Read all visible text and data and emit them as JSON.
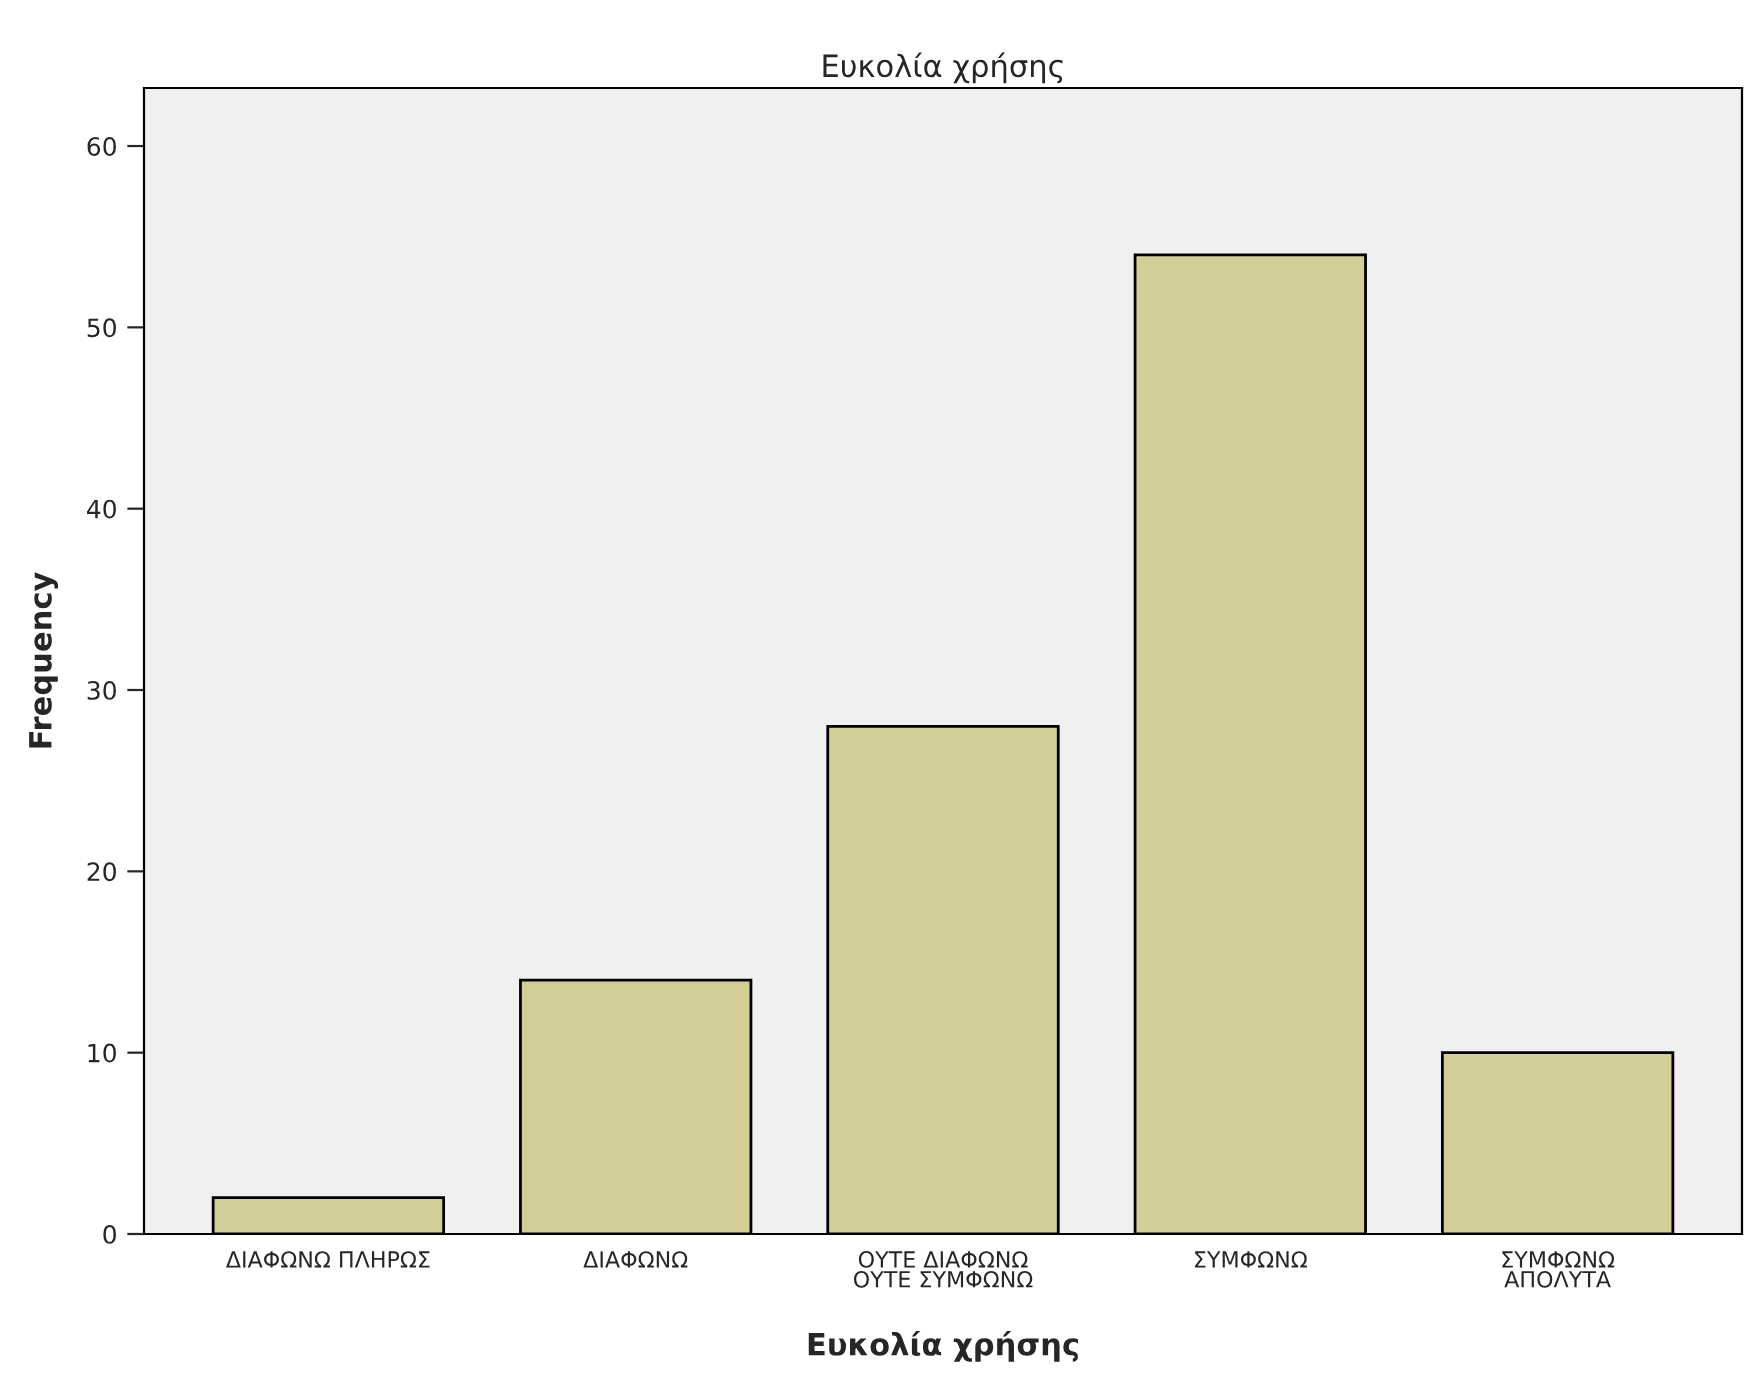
{
  "chart_data": {
    "type": "bar",
    "title": "Ευκολία χρήσης",
    "xlabel": "Ευκολία χρήσης",
    "ylabel": "Frequency",
    "categories": [
      "ΔΙΑΦΩΝΩ ΠΛΗΡΩΣ",
      "ΔΙΑΦΩΝΩ",
      "ΟΥΤΕ ΔΙΑΦΩΝΩ\nΟΥΤΕ ΣΥΜΦΩΝΩ",
      "ΣΥΜΦΩΝΩ",
      "ΣΥΜΦΩΝΩ\nΑΠΟΛΥΤΑ"
    ],
    "values": [
      2,
      14,
      28,
      54,
      10
    ],
    "color": "#d3ce97",
    "ylim": [
      0,
      63.2
    ],
    "yticks": [
      0,
      10,
      20,
      30,
      40,
      50,
      60
    ],
    "grid": false
  }
}
